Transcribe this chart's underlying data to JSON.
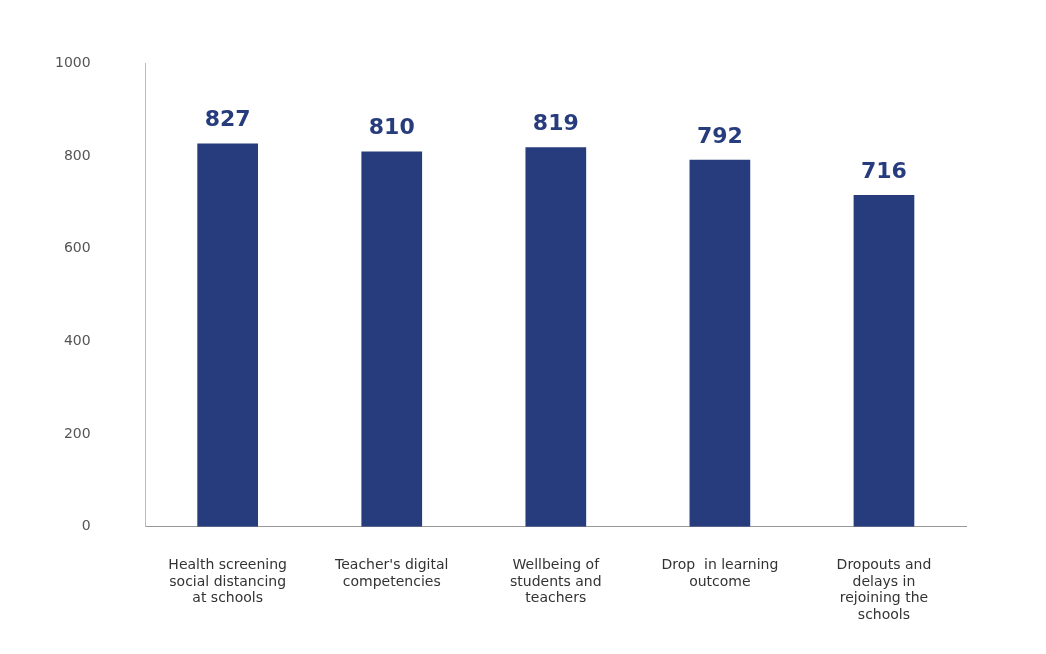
{
  "chart_data": {
    "type": "bar",
    "categories": [
      "Health screening social distancing at schools",
      "Teacher's digital competencies",
      "Wellbeing of students and teachers",
      "Drop  in learning outcome",
      "Dropouts and delays in rejoining the schools"
    ],
    "values": [
      827,
      810,
      819,
      792,
      716
    ],
    "color": "#263c7d",
    "ylim": [
      0,
      1000
    ],
    "yticks": [
      0,
      200,
      400,
      600,
      800,
      1000
    ],
    "grid": false,
    "legend": false,
    "data_labels": true
  }
}
